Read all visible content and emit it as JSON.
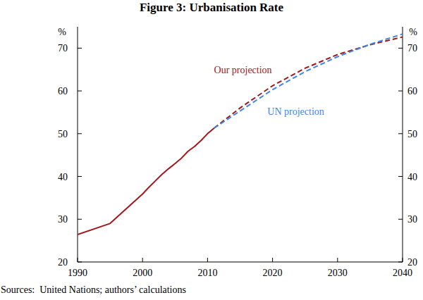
{
  "chart_data": {
    "type": "line",
    "title": "Figure 3: Urbanisation Rate",
    "ylabel": "%",
    "y2label": "%",
    "source": "Sources:  United Nations; authors’ calculations",
    "xlim": [
      1990,
      2040
    ],
    "xticks": [
      1990,
      2000,
      2010,
      2020,
      2030,
      2040
    ],
    "ylim": [
      20,
      75
    ],
    "yticks": [
      20,
      30,
      40,
      50,
      60,
      70
    ],
    "y2lim": [
      20,
      75
    ],
    "y2ticks": [
      20,
      30,
      40,
      50,
      60,
      70
    ],
    "grid": false,
    "series": [
      {
        "color": "#a3161b",
        "line_style": "solid",
        "x": [
          1990,
          1995,
          2000,
          2001,
          2002,
          2003,
          2004,
          2005,
          2006,
          2007,
          2008,
          2009,
          2010,
          2011
        ],
        "values": [
          26.4,
          29.0,
          35.9,
          37.5,
          39.0,
          40.5,
          41.8,
          43.0,
          44.3,
          45.9,
          47.0,
          48.4,
          50.0,
          51.3
        ]
      },
      {
        "name": "Our projection",
        "color": "#a3161b",
        "line_style": "dashed",
        "x": [
          2011,
          2015,
          2020,
          2025,
          2030,
          2035,
          2040
        ],
        "values": [
          51.3,
          56.0,
          61.2,
          65.3,
          68.5,
          70.8,
          72.6
        ]
      },
      {
        "name": "UN projection",
        "color": "#3c87e6",
        "line_style": "dashed",
        "x": [
          2011,
          2015,
          2020,
          2025,
          2030,
          2035,
          2040
        ],
        "values": [
          51.3,
          55.3,
          60.3,
          64.5,
          68.0,
          70.9,
          73.3
        ]
      }
    ]
  }
}
